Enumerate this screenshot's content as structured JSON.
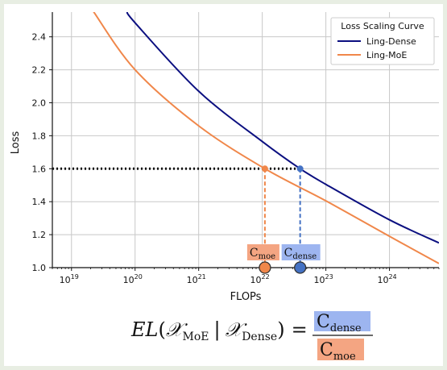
{
  "chart_data": {
    "type": "line",
    "xscale": "log",
    "xlabel": "FLOPs",
    "ylabel": "Loss",
    "xlim": [
      5e+18,
      6e+24
    ],
    "ylim": [
      1.0,
      2.55
    ],
    "grid": true,
    "legend": {
      "title": "Loss Scaling Curve",
      "position": "top-right",
      "entries": [
        "Ling-Dense",
        "Ling-MoE"
      ]
    },
    "x_ticks": [
      {
        "base": "10",
        "exp": "19",
        "value": 1e+19
      },
      {
        "base": "10",
        "exp": "20",
        "value": 1e+20
      },
      {
        "base": "10",
        "exp": "21",
        "value": 1e+21
      },
      {
        "base": "10",
        "exp": "22",
        "value": 1e+22
      },
      {
        "base": "10",
        "exp": "23",
        "value": 1e+23
      },
      {
        "base": "10",
        "exp": "24",
        "value": 1e+24
      }
    ],
    "y_ticks": [
      "1.0",
      "1.2",
      "1.4",
      "1.6",
      "1.8",
      "2.0",
      "2.2",
      "2.4"
    ],
    "series": [
      {
        "name": "Ling-Dense",
        "color": "#0b0f80",
        "x": [
          7.5e+19,
          1e+20,
          1e+21,
          1e+22,
          3.94e+22,
          1e+23,
          1e+24,
          6e+24
        ],
        "y": [
          2.555,
          2.485,
          2.07,
          1.765,
          1.6,
          1.505,
          1.29,
          1.15
        ]
      },
      {
        "name": "Ling-MoE",
        "color": "#f0874a",
        "x": [
          2.2e+19,
          1e+20,
          1e+21,
          1.1e+22,
          1e+23,
          1e+24,
          6e+24
        ],
        "y": [
          2.555,
          2.2,
          1.86,
          1.6,
          1.405,
          1.19,
          1.025
        ]
      }
    ],
    "reference_line": {
      "y": 1.6
    },
    "markers": [
      {
        "name": "C_moe",
        "x": 1.1e+22,
        "y": 1.6,
        "color": "#f0874a"
      },
      {
        "name": "C_dense",
        "x": 3.94e+22,
        "y": 1.6,
        "color": "#4472c4"
      }
    ],
    "annotations": {
      "moe_label": {
        "base": "C",
        "sub": "moe",
        "bg": "#f4a582"
      },
      "dense_label": {
        "base": "C",
        "sub": "dense",
        "bg": "#9db5f0"
      }
    }
  },
  "formula": {
    "lhs_fn": "EL",
    "open": "(",
    "x1": "𝒳",
    "x1_sub": "MoE",
    "bar": "|",
    "x2": "𝒳",
    "x2_sub": "Dense",
    "close": ")",
    "eq": "=",
    "num_base": "C",
    "num_sub": "dense",
    "den_base": "C",
    "den_sub": "moe"
  }
}
